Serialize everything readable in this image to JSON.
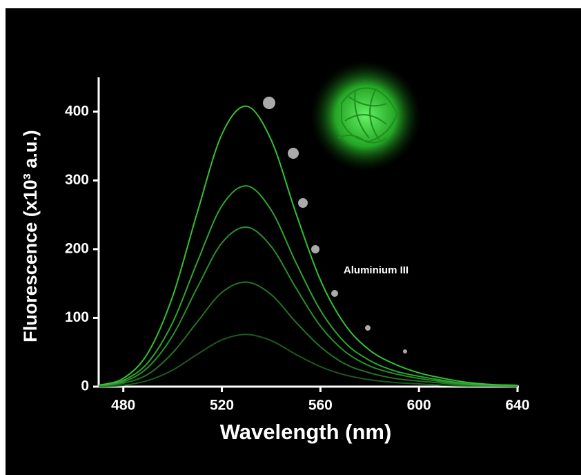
{
  "chart_data": {
    "type": "line",
    "x_label": "Wavelength (nm)",
    "y_label": "Fluorescence (x10³ a.u.)",
    "annotation": "Aluminium III",
    "x": [
      470,
      480,
      490,
      500,
      510,
      520,
      530,
      540,
      550,
      560,
      570,
      580,
      590,
      600,
      610,
      620,
      630,
      640
    ],
    "series": [
      {
        "color": "#33c233",
        "values": [
          2,
          12,
          49,
          131,
          253,
          367,
          408,
          359,
          253,
          155,
          90,
          53,
          33,
          20,
          12,
          6,
          3,
          2
        ]
      },
      {
        "color": "#2ea62e",
        "values": [
          1,
          9,
          35,
          93,
          181,
          263,
          292,
          257,
          181,
          111,
          64,
          38,
          23,
          15,
          9,
          4,
          2,
          1
        ]
      },
      {
        "color": "#2a912a",
        "values": [
          1,
          7,
          28,
          74,
          144,
          209,
          232,
          204,
          144,
          88,
          51,
          30,
          19,
          12,
          7,
          3,
          2,
          1
        ]
      },
      {
        "color": "#237523",
        "values": [
          1,
          5,
          18,
          49,
          94,
          137,
          152,
          134,
          94,
          58,
          33,
          20,
          12,
          8,
          5,
          2,
          1,
          1
        ]
      },
      {
        "color": "#1d5a1d",
        "values": [
          0,
          2,
          9,
          24,
          47,
          68,
          76,
          67,
          47,
          29,
          17,
          10,
          6,
          4,
          2,
          1,
          1,
          0
        ]
      }
    ],
    "xlim": [
      470,
      640
    ],
    "ylim": [
      0,
      450
    ],
    "xticks": [
      480,
      520,
      560,
      600,
      640
    ],
    "yticks": [
      0,
      100,
      200,
      300,
      400
    ],
    "grid": false
  }
}
